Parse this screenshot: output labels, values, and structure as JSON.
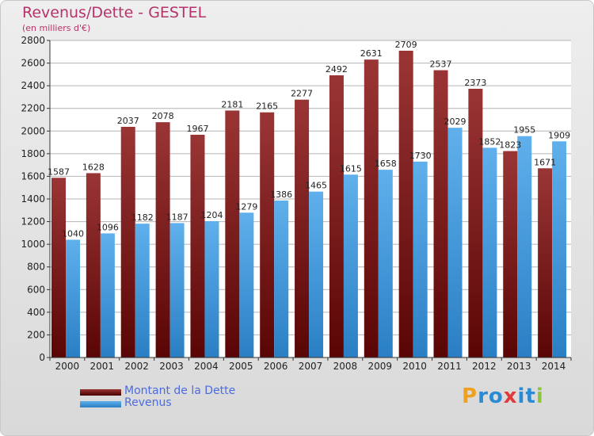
{
  "title": "Revenus/Dette - GESTEL",
  "subtitle": "(en milliers d'€)",
  "logo": {
    "parts": [
      "P",
      "r",
      "o",
      "x",
      "i",
      "t",
      "i"
    ],
    "colors": [
      "#f0a020",
      "#2a8ad4",
      "#2a8ad4",
      "#e03a3a",
      "#2a8ad4",
      "#2a8ad4",
      "#8cc63f"
    ]
  },
  "colors": {
    "dette": "#8b1a1a",
    "revenus": "#3d9be0",
    "title": "#b5336a",
    "legend_text": "#4d6be0"
  },
  "chart_data": {
    "type": "bar",
    "title": "Revenus/Dette - GESTEL",
    "subtitle": "(en milliers d'€)",
    "categories": [
      "2000",
      "2001",
      "2002",
      "2003",
      "2004",
      "2005",
      "2006",
      "2007",
      "2008",
      "2009",
      "2010",
      "2011",
      "2012",
      "2013",
      "2014"
    ],
    "series": [
      {
        "name": "Montant de la Dette",
        "values": [
          1587,
          1628,
          2037,
          2078,
          1967,
          2181,
          2165,
          2277,
          2492,
          2631,
          2709,
          2537,
          2373,
          1823,
          1671
        ],
        "labels": [
          "1587",
          "1628",
          "2037",
          "2078",
          "1967",
          "2181",
          "2165",
          "2277",
          "2492",
          "2631",
          "2709",
          "2537",
          "2373",
          "1823",
          "1671"
        ]
      },
      {
        "name": "Revenus",
        "values": [
          1040,
          1096,
          1182,
          1187,
          1204,
          1279,
          1386,
          1465,
          1615,
          1658,
          1730,
          2029,
          1852,
          1955,
          1909
        ],
        "labels": [
          "1040",
          "1096",
          "1182",
          "1187",
          "1204",
          "1279",
          "1386",
          "1465",
          "1615",
          "1658",
          "1730",
          "2029",
          "1852",
          "1955",
          "1909"
        ]
      }
    ],
    "ylim": [
      0,
      2800
    ],
    "yticks": [
      0,
      200,
      400,
      600,
      800,
      1000,
      1200,
      1400,
      1600,
      1800,
      2000,
      2200,
      2400,
      2600,
      2800
    ],
    "grid": true,
    "legend": "bottom-left"
  }
}
